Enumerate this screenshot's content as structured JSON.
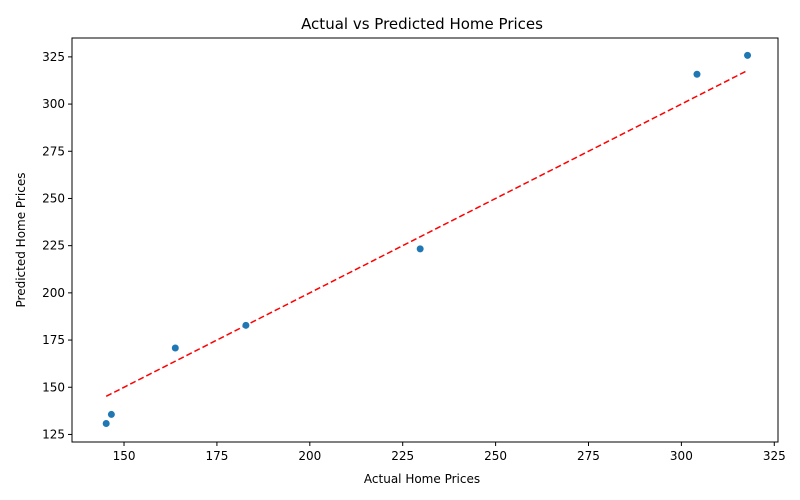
{
  "chart_data": {
    "type": "scatter",
    "title": "Actual vs Predicted Home Prices",
    "xlabel": "Actual Home Prices",
    "ylabel": "Predicted Home Prices",
    "xlim": [
      136,
      326
    ],
    "ylim": [
      121,
      335
    ],
    "xticks": [
      150,
      175,
      200,
      225,
      250,
      275,
      300,
      325
    ],
    "yticks": [
      125,
      150,
      175,
      200,
      225,
      250,
      275,
      300,
      325
    ],
    "grid": false,
    "legend": "none",
    "points": [
      {
        "x": 145.2,
        "y": 130.8
      },
      {
        "x": 146.6,
        "y": 135.6
      },
      {
        "x": 163.8,
        "y": 170.8
      },
      {
        "x": 182.8,
        "y": 182.8
      },
      {
        "x": 229.7,
        "y": 223.3
      },
      {
        "x": 304.2,
        "y": 315.8
      },
      {
        "x": 317.8,
        "y": 325.8
      }
    ],
    "reference_line": {
      "from": [
        145.2,
        145.2
      ],
      "to": [
        317.8,
        317.8
      ],
      "style": "dashed"
    },
    "colors": {
      "points": "#1f77b4",
      "reference_line": "#ff0000",
      "axes": "#000000"
    }
  }
}
